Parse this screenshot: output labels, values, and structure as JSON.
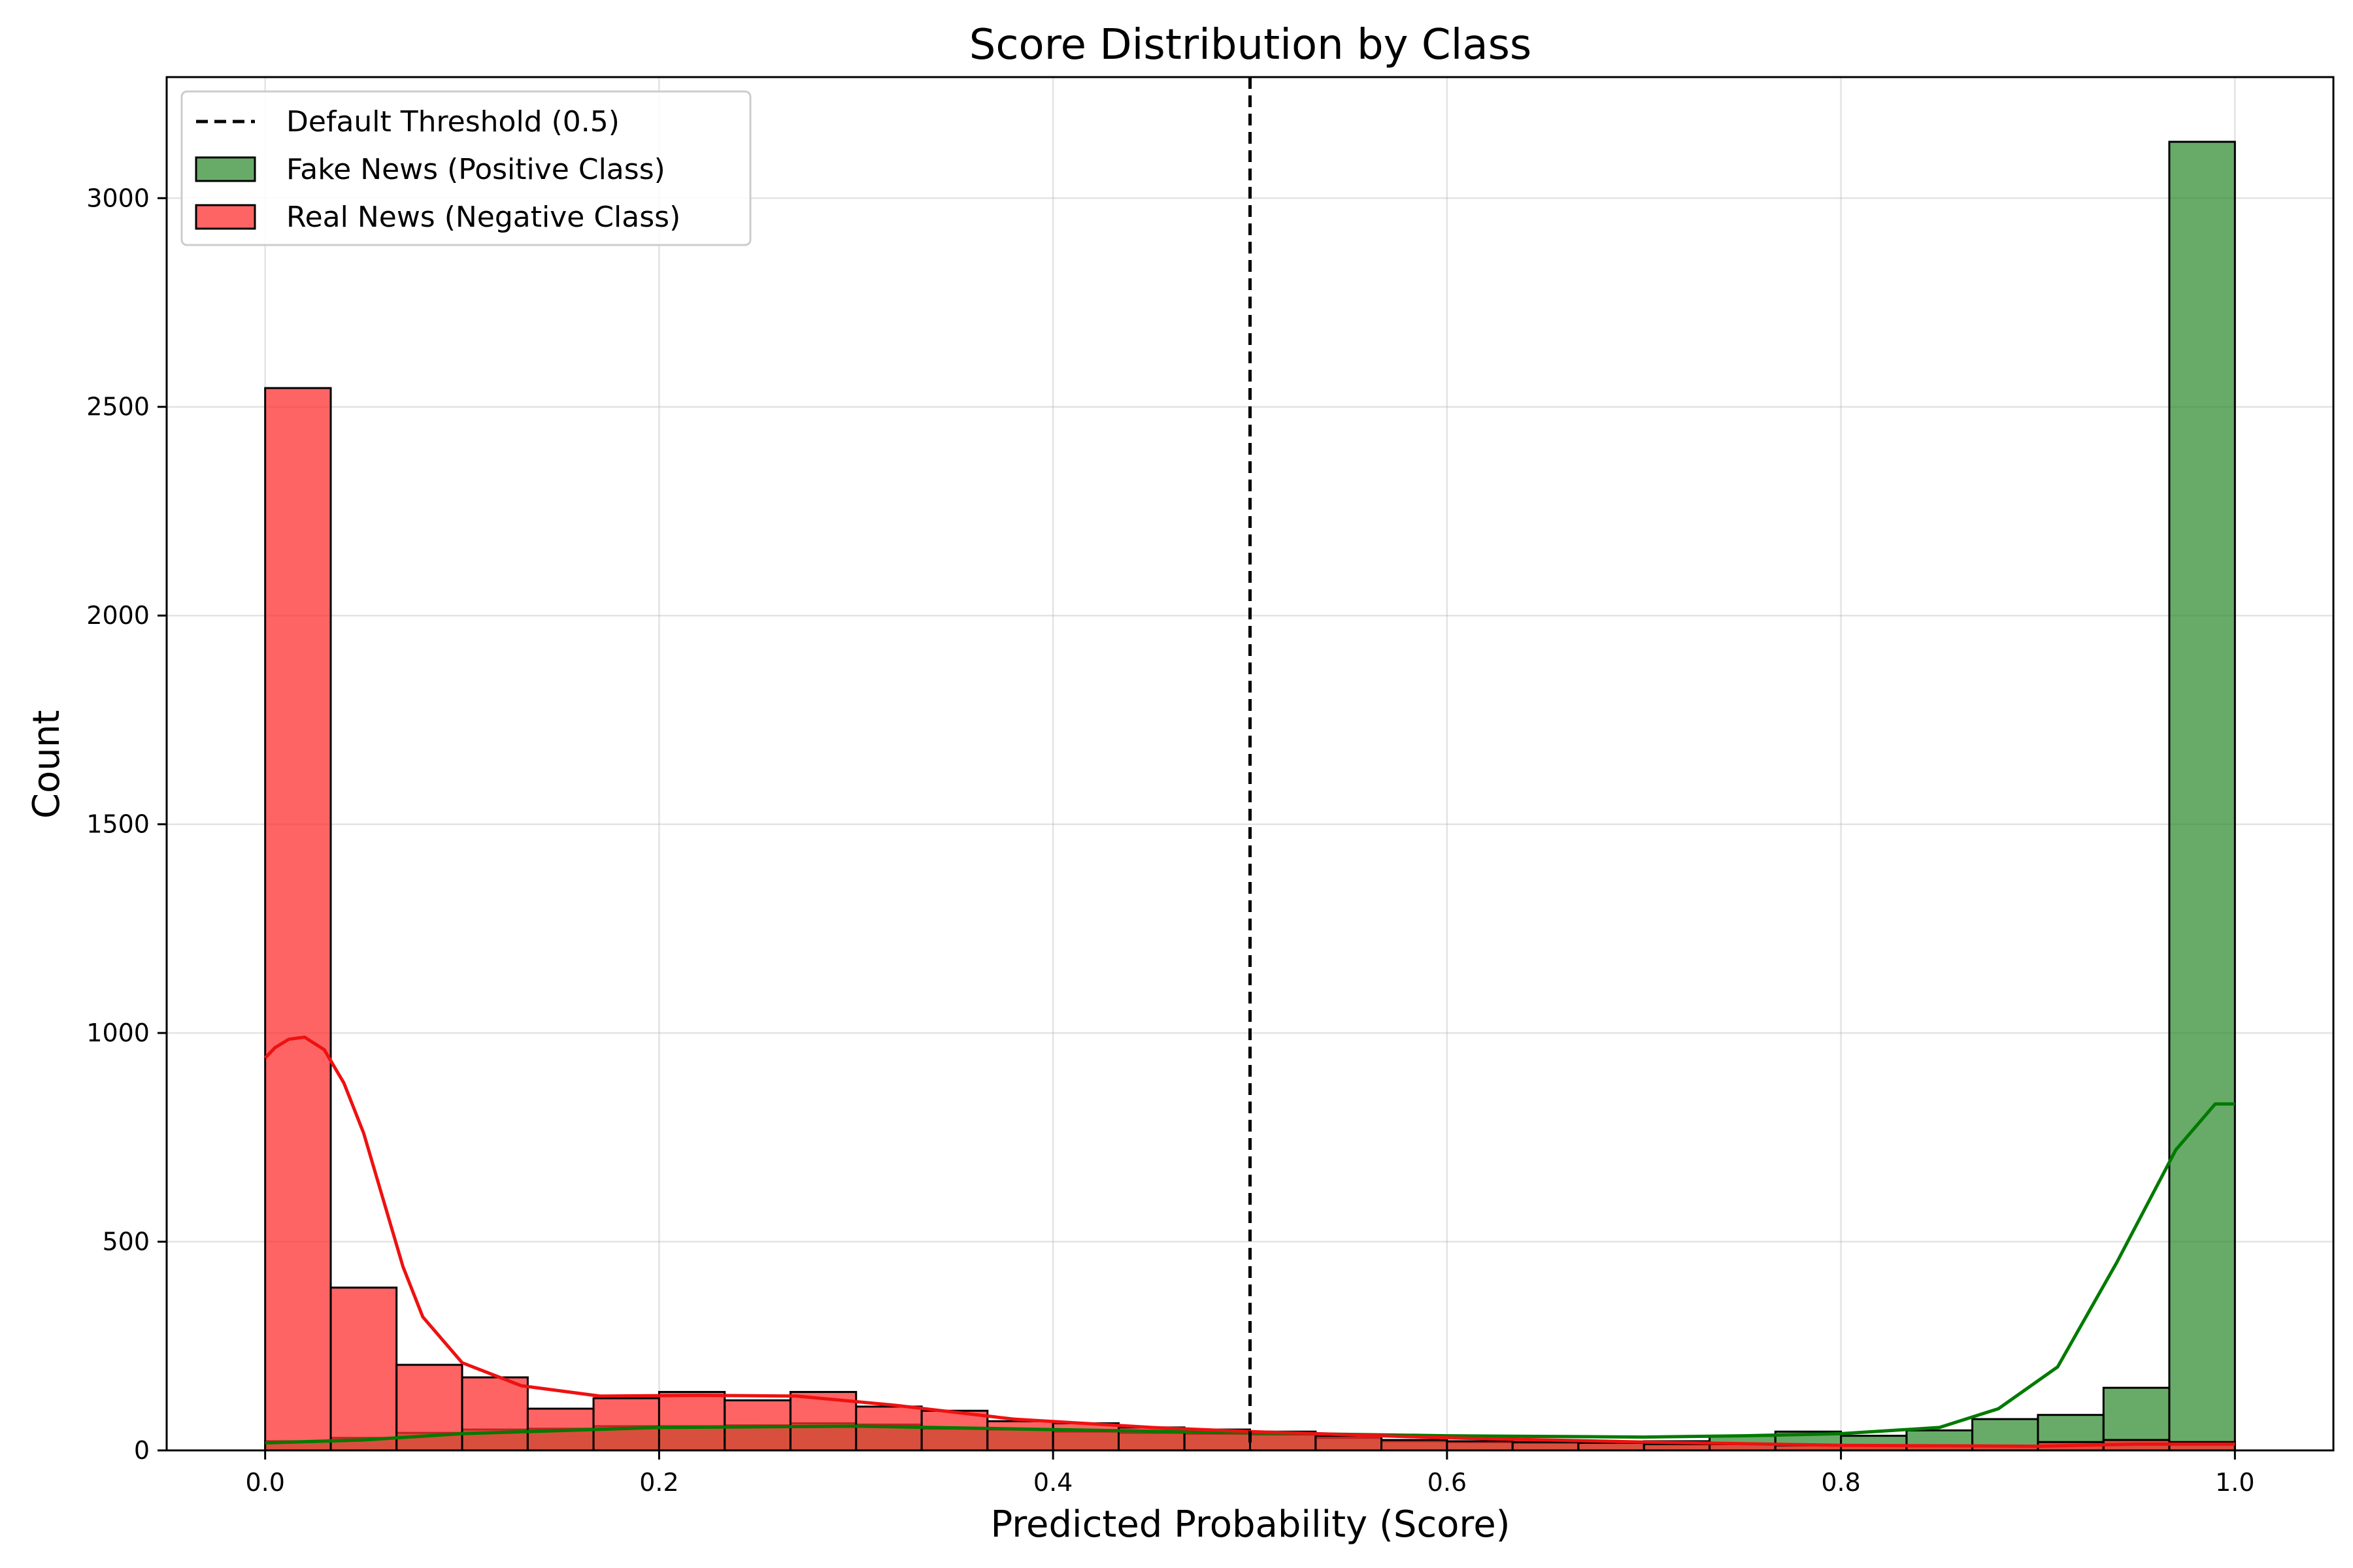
{
  "chart_data": {
    "type": "bar",
    "title": "Score Distribution by Class",
    "xlabel": "Predicted Probability (Score)",
    "ylabel": "Count",
    "xlim": [
      -0.05,
      1.05
    ],
    "ylim": [
      0,
      3290
    ],
    "xticks": [
      0.0,
      0.2,
      0.4,
      0.6,
      0.8,
      1.0
    ],
    "xtick_labels": [
      "0.0",
      "0.2",
      "0.4",
      "0.6",
      "0.8",
      "1.0"
    ],
    "yticks": [
      0,
      500,
      1000,
      1500,
      2000,
      2500,
      3000
    ],
    "ytick_labels": [
      "0",
      "500",
      "1000",
      "1500",
      "2000",
      "2500",
      "3000"
    ],
    "grid": true,
    "legend_position": "top-left",
    "threshold": {
      "x": 0.5,
      "label": "Default Threshold (0.5)",
      "color": "#000000"
    },
    "bin_edges": [
      0.0,
      0.0333,
      0.0667,
      0.1,
      0.1333,
      0.1667,
      0.2,
      0.2333,
      0.2667,
      0.3,
      0.3333,
      0.3667,
      0.4,
      0.4333,
      0.4667,
      0.5,
      0.5333,
      0.5667,
      0.6,
      0.6333,
      0.6667,
      0.7,
      0.7333,
      0.7667,
      0.8,
      0.8333,
      0.8667,
      0.9,
      0.9333,
      0.9667,
      1.0
    ],
    "series": [
      {
        "name": "Fake News (Positive Class)",
        "color": "#2e8b2e",
        "fill_opacity": 0.72,
        "line_color": "#007a00",
        "values": [
          22,
          30,
          42,
          50,
          52,
          58,
          58,
          60,
          65,
          62,
          52,
          50,
          45,
          42,
          40,
          38,
          30,
          22,
          20,
          18,
          18,
          22,
          35,
          45,
          35,
          48,
          75,
          85,
          150,
          3135
        ],
        "kde": [
          [
            0.0,
            18
          ],
          [
            0.05,
            25
          ],
          [
            0.1,
            40
          ],
          [
            0.2,
            55
          ],
          [
            0.3,
            58
          ],
          [
            0.4,
            50
          ],
          [
            0.5,
            42
          ],
          [
            0.6,
            35
          ],
          [
            0.7,
            32
          ],
          [
            0.75,
            35
          ],
          [
            0.8,
            40
          ],
          [
            0.85,
            55
          ],
          [
            0.88,
            100
          ],
          [
            0.91,
            200
          ],
          [
            0.94,
            450
          ],
          [
            0.97,
            720
          ],
          [
            0.99,
            830
          ],
          [
            1.0,
            830
          ]
        ]
      },
      {
        "name": "Real News (Negative Class)",
        "color": "#ff3030",
        "fill_opacity": 0.75,
        "line_color": "#ee1111",
        "values": [
          2545,
          390,
          205,
          175,
          100,
          125,
          140,
          120,
          140,
          105,
          95,
          70,
          65,
          55,
          50,
          45,
          35,
          25,
          22,
          20,
          18,
          15,
          15,
          12,
          12,
          10,
          10,
          20,
          25,
          20
        ],
        "kde": [
          [
            0.0,
            940
          ],
          [
            0.005,
            965
          ],
          [
            0.012,
            985
          ],
          [
            0.02,
            990
          ],
          [
            0.03,
            960
          ],
          [
            0.04,
            880
          ],
          [
            0.05,
            760
          ],
          [
            0.06,
            600
          ],
          [
            0.07,
            440
          ],
          [
            0.08,
            320
          ],
          [
            0.1,
            210
          ],
          [
            0.13,
            155
          ],
          [
            0.17,
            130
          ],
          [
            0.22,
            132
          ],
          [
            0.27,
            130
          ],
          [
            0.32,
            108
          ],
          [
            0.38,
            75
          ],
          [
            0.45,
            55
          ],
          [
            0.5,
            45
          ],
          [
            0.6,
            30
          ],
          [
            0.7,
            20
          ],
          [
            0.8,
            12
          ],
          [
            0.9,
            10
          ],
          [
            0.95,
            15
          ],
          [
            1.0,
            15
          ]
        ]
      }
    ]
  }
}
